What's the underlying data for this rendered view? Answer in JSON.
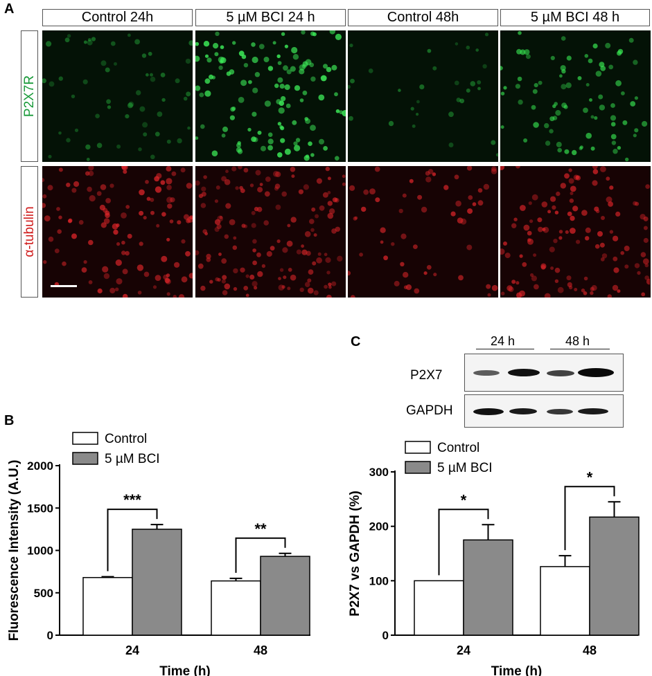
{
  "panel_letters": {
    "a": "A",
    "b": "B",
    "c": "C"
  },
  "columns": [
    "Control 24h",
    "5 µM BCI 24 h",
    "Control 48h",
    "5 µM BCI 48 h"
  ],
  "rows": [
    "P2X7R",
    "α-tubulin"
  ],
  "colors": {
    "green_stain": "#2fd84a",
    "red_stain": "#e0262a",
    "green_label": "#1a9a3a",
    "red_label": "#d01c1c",
    "control_bar": "#ffffff",
    "bci_bar": "#8a8a8a"
  },
  "blot": {
    "lanes": [
      "24 h",
      "48 h"
    ],
    "rows": [
      "P2X7",
      "GAPDH"
    ]
  },
  "chart_data": [
    {
      "type": "bar",
      "panel": "B",
      "categories": [
        "24",
        "48"
      ],
      "series": [
        {
          "name": "Control",
          "values": [
            680,
            640
          ],
          "errors": [
            10,
            30
          ]
        },
        {
          "name": "5 µM BCI",
          "values": [
            1250,
            930
          ],
          "errors": [
            55,
            35
          ]
        }
      ],
      "significance": [
        "***",
        "**"
      ],
      "xlabel": "Time (h)",
      "ylabel": "Fluorescence Intensity (A.U.)",
      "ylim": [
        0,
        2000
      ],
      "yticks": [
        0,
        500,
        1000,
        1500,
        2000
      ],
      "legend": "top-left"
    },
    {
      "type": "bar",
      "panel": "C",
      "categories": [
        "24",
        "48"
      ],
      "series": [
        {
          "name": "Control",
          "values": [
            100,
            126
          ],
          "errors": [
            0,
            20
          ]
        },
        {
          "name": "5 µM BCI",
          "values": [
            175,
            217
          ],
          "errors": [
            28,
            28
          ]
        }
      ],
      "significance": [
        "*",
        "*"
      ],
      "xlabel": "Time (h)",
      "ylabel": "P2X7 vs GAPDH (%)",
      "ylim": [
        0,
        300
      ],
      "yticks": [
        0,
        100,
        200,
        300
      ],
      "legend": "top-left"
    }
  ]
}
